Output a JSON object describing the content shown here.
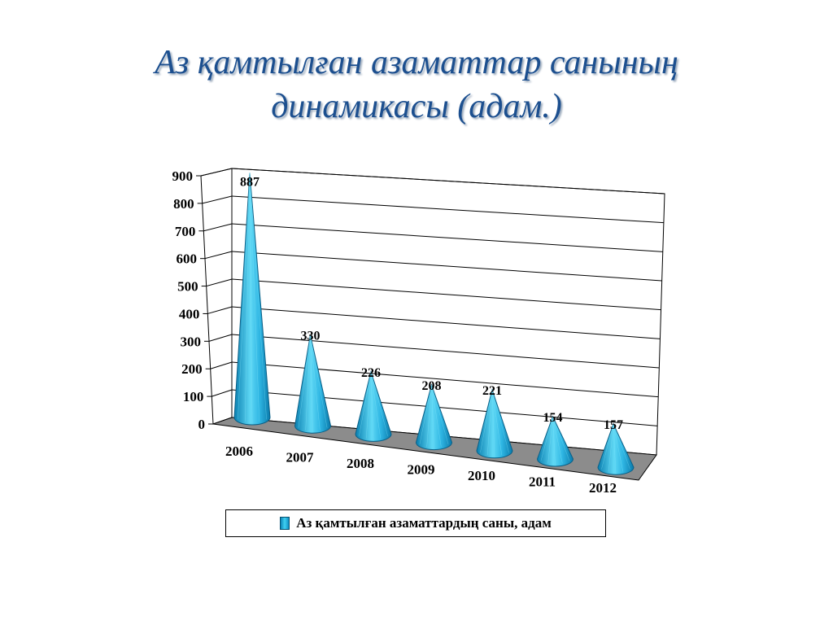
{
  "title": {
    "line1": "Аз қамтылған азаматтар санының",
    "line2": "динамикасы (адам.)"
  },
  "colors": {
    "title": "#1c4f8f",
    "cone_dark": "#0a7fb0",
    "cone_light": "#5fd8f5",
    "floor": "#8c8c8c"
  },
  "chart_data": {
    "type": "bar",
    "style": "3d-cone",
    "categories": [
      "2006",
      "2007",
      "2008",
      "2009",
      "2010",
      "2011",
      "2012"
    ],
    "series": [
      {
        "name": "Аз қамтылған азаматтардың саны, адам",
        "values": [
          887,
          330,
          226,
          208,
          221,
          154,
          157
        ]
      }
    ],
    "yticks": [
      "0",
      "100",
      "200",
      "300",
      "400",
      "500",
      "600",
      "700",
      "800",
      "900"
    ],
    "ylim": [
      0,
      900
    ],
    "grid": true,
    "legend": "bottom"
  },
  "legend": {
    "label": "Аз қамтылған азаматтардың саны, адам",
    "icon": "cone-icon"
  }
}
